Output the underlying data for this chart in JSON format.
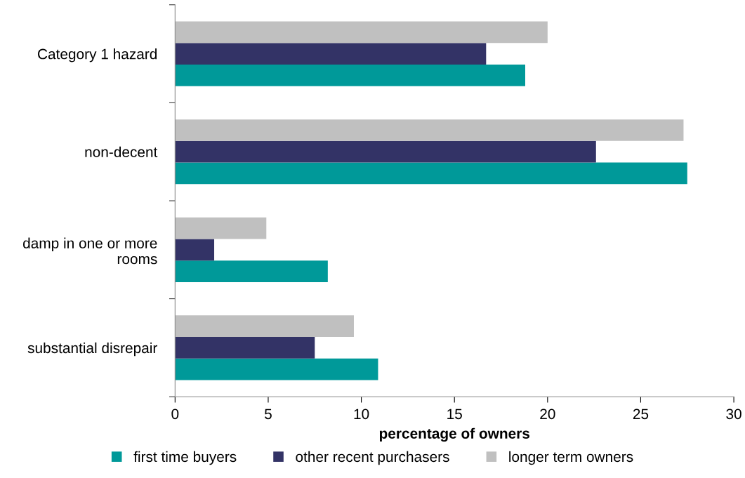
{
  "chart_data": {
    "type": "bar",
    "orientation": "horizontal",
    "xlabel": "percentage of owners",
    "categories": [
      "Category 1 hazard",
      "non-decent",
      "damp in one or more\nrooms",
      "substantial disrepair"
    ],
    "series": [
      {
        "name": "first time buyers",
        "color": "#009999",
        "values": [
          18.8,
          27.5,
          8.2,
          10.9
        ]
      },
      {
        "name": "other recent purchasers",
        "color": "#333366",
        "values": [
          16.7,
          22.6,
          2.1,
          7.5
        ]
      },
      {
        "name": "longer term owners",
        "color": "#c0c0c0",
        "values": [
          20.0,
          27.3,
          4.9,
          9.6
        ]
      }
    ],
    "xlim": [
      0,
      30
    ],
    "xticks": [
      0,
      5,
      10,
      15,
      20,
      25,
      30
    ],
    "grid": false,
    "legend": "bottom"
  }
}
